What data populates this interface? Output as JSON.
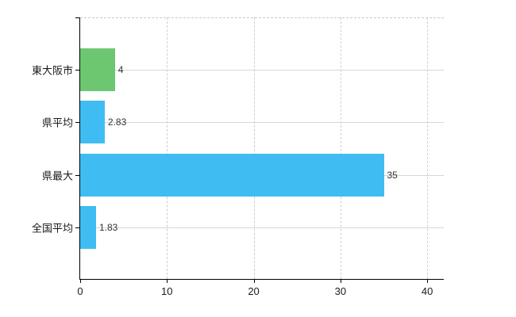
{
  "chart_data": {
    "type": "bar",
    "orientation": "horizontal",
    "title": "",
    "xlabel": "",
    "ylabel": "",
    "categories": [
      "東大阪市",
      "県平均",
      "県最大",
      "全国平均"
    ],
    "values": [
      4,
      2.83,
      35,
      1.83
    ],
    "value_labels": [
      "4",
      "2.83",
      "35",
      "1.83"
    ],
    "bar_colors": [
      "#6dc771",
      "#3fbdf2",
      "#3fbdf2",
      "#3fbdf2"
    ],
    "xlim": [
      0,
      42
    ],
    "x_ticks": [
      0,
      10,
      20,
      30,
      40
    ],
    "x_tick_labels": [
      "0",
      "10",
      "20",
      "30",
      "40"
    ],
    "grid": "on",
    "gridline_styles": {
      "vertical": "dashed",
      "horizontal": "solid",
      "top_border": "dashed"
    },
    "legend": "none"
  },
  "colors": {
    "background": "#ffffff",
    "axis": "#000000",
    "grid_horizontal": "#d2dad2",
    "grid_vertical": "#d2cdd2",
    "tick_label": "#1a1a1a",
    "value_label": "#333333",
    "green_bar": "#6dc771",
    "blue_bar": "#3fbdf2"
  }
}
